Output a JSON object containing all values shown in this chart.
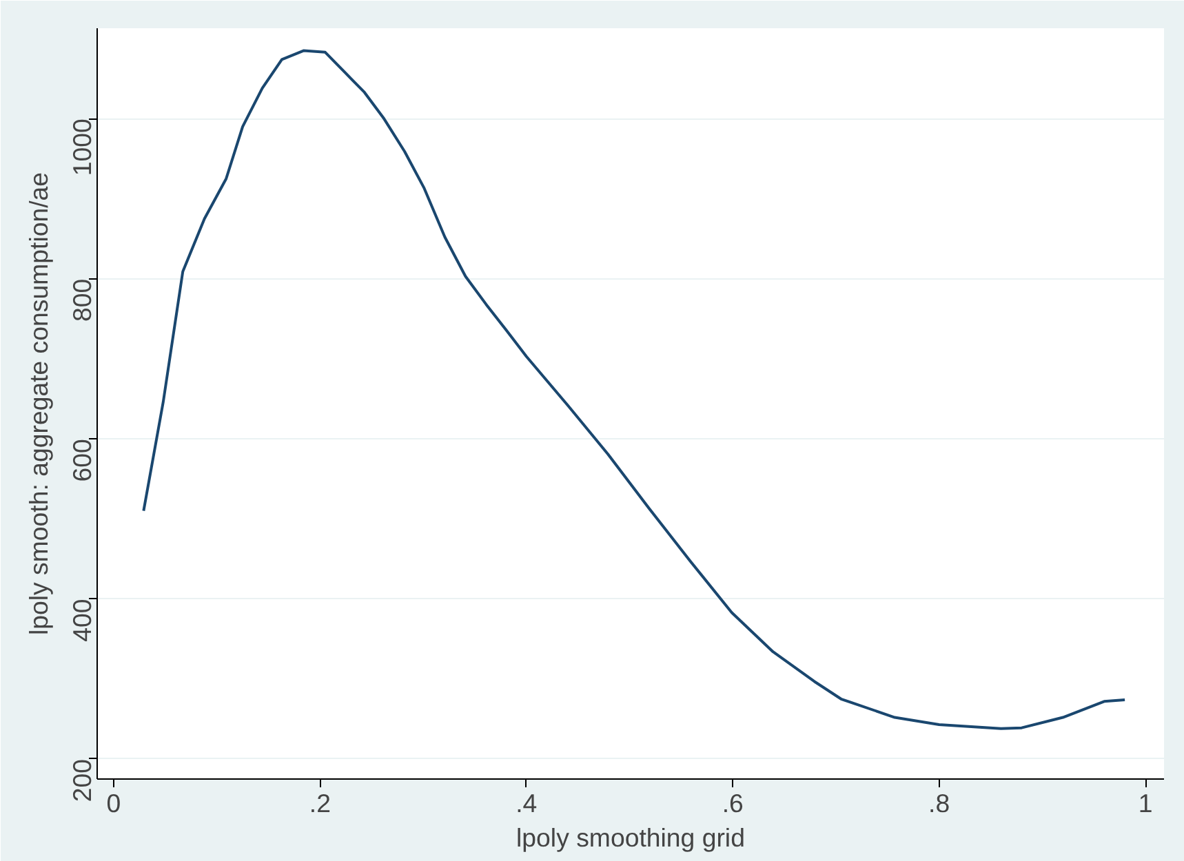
{
  "chart_data": {
    "type": "line",
    "xlabel": "lpoly smoothing grid",
    "ylabel": "lpoly smooth: aggregate consumption/ae",
    "x": [
      0.029,
      0.048,
      0.067,
      0.088,
      0.109,
      0.125,
      0.144,
      0.163,
      0.184,
      0.205,
      0.224,
      0.243,
      0.262,
      0.282,
      0.301,
      0.321,
      0.341,
      0.361,
      0.381,
      0.4,
      0.44,
      0.479,
      0.519,
      0.559,
      0.599,
      0.639,
      0.679,
      0.705,
      0.757,
      0.8,
      0.86,
      0.88,
      0.92,
      0.96,
      0.98
    ],
    "series": [
      {
        "color": "#1a476f",
        "values": [
          510,
          646,
          809,
          875,
          925,
          990,
          1038,
          1074,
          1085,
          1083,
          1058,
          1033,
          1000,
          959,
          913,
          852,
          803,
          768,
          735,
          703,
          642,
          581,
          513,
          447,
          383,
          334,
          297,
          275,
          252,
          243,
          238,
          239,
          252,
          272,
          274
        ]
      }
    ],
    "xlim": [
      -0.016,
      1.018
    ],
    "ylim": [
      175,
      1113
    ],
    "xticks": [
      0,
      {
        "value": 0.2,
        "label": ".2"
      },
      {
        "value": 0.4,
        "label": ".4"
      },
      {
        "value": 0.6,
        "label": ".6"
      },
      {
        "value": 0.8,
        "label": ".8"
      },
      1
    ],
    "yticks": [
      200,
      400,
      600,
      800,
      1000
    ],
    "grid": "y",
    "marker": "none",
    "line_style": "solid"
  }
}
